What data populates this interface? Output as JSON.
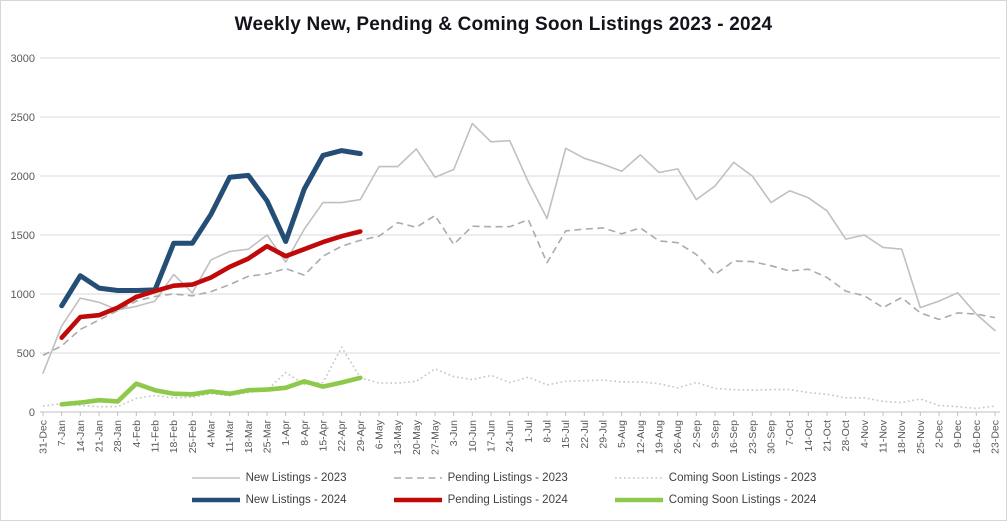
{
  "chart_data": {
    "type": "line",
    "title": "Weekly New, Pending & Coming Soon Listings 2023 - 2024",
    "xlabel": "",
    "ylabel": "",
    "ylim": [
      0,
      3000
    ],
    "yticks": [
      0,
      500,
      1000,
      1500,
      2000,
      2500,
      3000
    ],
    "grid": true,
    "legend_position": "bottom",
    "categories": [
      "31-Dec",
      "7-Jan",
      "14-Jan",
      "21-Jan",
      "28-Jan",
      "4-Feb",
      "11-Feb",
      "18-Feb",
      "25-Feb",
      "4-Mar",
      "11-Mar",
      "18-Mar",
      "25-Mar",
      "1-Apr",
      "8-Apr",
      "15-Apr",
      "22-Apr",
      "29-Apr",
      "6-May",
      "13-May",
      "20-May",
      "27-May",
      "3-Jun",
      "10-Jun",
      "17-Jun",
      "24-Jun",
      "1-Jul",
      "8-Jul",
      "15-Jul",
      "22-Jul",
      "29-Jul",
      "5-Aug",
      "12-Aug",
      "19-Aug",
      "26-Aug",
      "2-Sep",
      "9-Sep",
      "16-Sep",
      "23-Sep",
      "30-Sep",
      "7-Oct",
      "14-Oct",
      "21-Oct",
      "28-Oct",
      "4-Nov",
      "11-Nov",
      "18-Nov",
      "25-Nov",
      "2-Dec",
      "9-Dec",
      "16-Dec",
      "23-Dec"
    ],
    "series": [
      {
        "name": "New Listings - 2023",
        "color": "#C0C0C0",
        "style": "solid",
        "width": 1.6,
        "values": [
          330,
          730,
          965,
          930,
          865,
          895,
          940,
          1165,
          1010,
          1290,
          1360,
          1380,
          1500,
          1270,
          1550,
          1775,
          1775,
          1800,
          2080,
          2080,
          2230,
          1990,
          2055,
          2445,
          2290,
          2300,
          1950,
          1640,
          2235,
          2150,
          2100,
          2040,
          2180,
          2030,
          2060,
          1800,
          1915,
          2115,
          2000,
          1775,
          1875,
          1815,
          1705,
          1465,
          1500,
          1395,
          1380,
          885,
          940,
          1010,
          830,
          690
        ]
      },
      {
        "name": "Pending Listings - 2023",
        "color": "#ABABAB",
        "style": "dashed",
        "width": 1.6,
        "values": [
          480,
          560,
          700,
          780,
          860,
          940,
          980,
          1000,
          985,
          1020,
          1080,
          1150,
          1170,
          1215,
          1160,
          1320,
          1405,
          1455,
          1490,
          1605,
          1565,
          1665,
          1420,
          1575,
          1570,
          1570,
          1630,
          1265,
          1535,
          1550,
          1560,
          1510,
          1560,
          1450,
          1435,
          1335,
          1165,
          1280,
          1275,
          1240,
          1195,
          1210,
          1140,
          1025,
          985,
          885,
          970,
          840,
          785,
          840,
          830,
          800
        ]
      },
      {
        "name": "Coming Soon Listings - 2023",
        "color": "#C6C6C6",
        "style": "dotted",
        "width": 1.6,
        "values": [
          50,
          70,
          55,
          45,
          45,
          115,
          140,
          120,
          125,
          155,
          140,
          165,
          185,
          335,
          235,
          250,
          550,
          290,
          245,
          245,
          260,
          365,
          300,
          275,
          310,
          250,
          295,
          230,
          260,
          265,
          270,
          255,
          255,
          240,
          205,
          250,
          200,
          190,
          185,
          190,
          190,
          165,
          150,
          120,
          120,
          90,
          80,
          110,
          55,
          45,
          30,
          50
        ]
      },
      {
        "name": "New Listings - 2024",
        "color": "#254E77",
        "style": "solid",
        "width": 5,
        "values": [
          null,
          900,
          1155,
          1050,
          1030,
          1030,
          1035,
          1430,
          1430,
          1675,
          1990,
          2005,
          1790,
          1445,
          1890,
          2175,
          2215,
          2190
        ]
      },
      {
        "name": "Pending Listings - 2024",
        "color": "#C00A0A",
        "style": "solid",
        "width": 4.6,
        "values": [
          null,
          630,
          805,
          820,
          885,
          975,
          1025,
          1070,
          1080,
          1140,
          1230,
          1300,
          1405,
          1320,
          1380,
          1440,
          1490,
          1530
        ]
      },
      {
        "name": "Coming Soon Listings - 2024",
        "color": "#8FC94C",
        "style": "solid",
        "width": 4.6,
        "values": [
          null,
          65,
          80,
          100,
          90,
          240,
          185,
          155,
          150,
          175,
          155,
          185,
          190,
          205,
          260,
          215,
          250,
          290
        ]
      }
    ],
    "legend_rows": [
      [
        0,
        1,
        2
      ],
      [
        3,
        4,
        5
      ]
    ]
  },
  "palette": {
    "background": "#FFFFFF",
    "gridline": "#D9D9D9",
    "axis_line": "#BFBFBF",
    "tick_label": "#595959",
    "legend_text": "#404040",
    "title_text": "#13131C"
  }
}
